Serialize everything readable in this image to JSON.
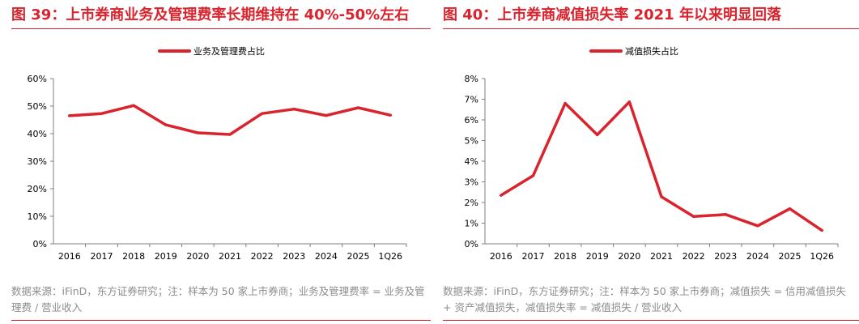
{
  "panels": [
    {
      "title": "图 39：上市券商业务及管理费率长期维持在 40%-50%左右",
      "source": "数据来源：iFinD，东方证券研究；注：样本为 50 家上市券商；业务及管理费率 = 业务及管理费 / 营业收入",
      "colors": {
        "accent": "#d9232d",
        "line": "#d9232d",
        "axis": "#7f7f7f",
        "text": "#000000"
      },
      "chart_data": {
        "type": "line",
        "title": "",
        "xlabel": "",
        "ylabel": "",
        "categories": [
          "2016",
          "2017",
          "2018",
          "2019",
          "2020",
          "2021",
          "2022",
          "2023",
          "2024",
          "2025",
          "1Q26"
        ],
        "series": [
          {
            "name": "业务及管理费占比",
            "values": [
              46.5,
              47.3,
              50.2,
              43.2,
              40.3,
              39.7,
              47.3,
              48.9,
              46.6,
              49.4,
              46.7
            ]
          }
        ],
        "ylim": [
          0,
          60
        ],
        "yticks": [
          "0%",
          "10%",
          "20%",
          "30%",
          "40%",
          "50%",
          "60%"
        ],
        "grid": false,
        "legend": "top"
      }
    },
    {
      "title": "图 40：上市券商减值损失率 2021 年以来明显回落",
      "source": "数据来源：iFinD，东方证券研究；注：样本为 50 家上市券商；减值损失 = 信用减值损失 + 资产减值损失，减值损失率 = 减值损失 / 营业收入",
      "colors": {
        "accent": "#d9232d",
        "line": "#d9232d",
        "axis": "#7f7f7f",
        "text": "#000000"
      },
      "chart_data": {
        "type": "line",
        "title": "",
        "xlabel": "",
        "ylabel": "",
        "categories": [
          "2016",
          "2017",
          "2018",
          "2019",
          "2020",
          "2021",
          "2022",
          "2023",
          "2024",
          "2025",
          "1Q26"
        ],
        "series": [
          {
            "name": "减值损失占比",
            "values": [
              2.35,
              3.3,
              6.8,
              5.28,
              6.87,
              2.28,
              1.32,
              1.42,
              0.87,
              1.7,
              0.65
            ]
          }
        ],
        "ylim": [
          0,
          8
        ],
        "yticks": [
          "0%",
          "1%",
          "2%",
          "3%",
          "4%",
          "5%",
          "6%",
          "7%",
          "8%"
        ],
        "grid": false,
        "legend": "top"
      }
    }
  ]
}
